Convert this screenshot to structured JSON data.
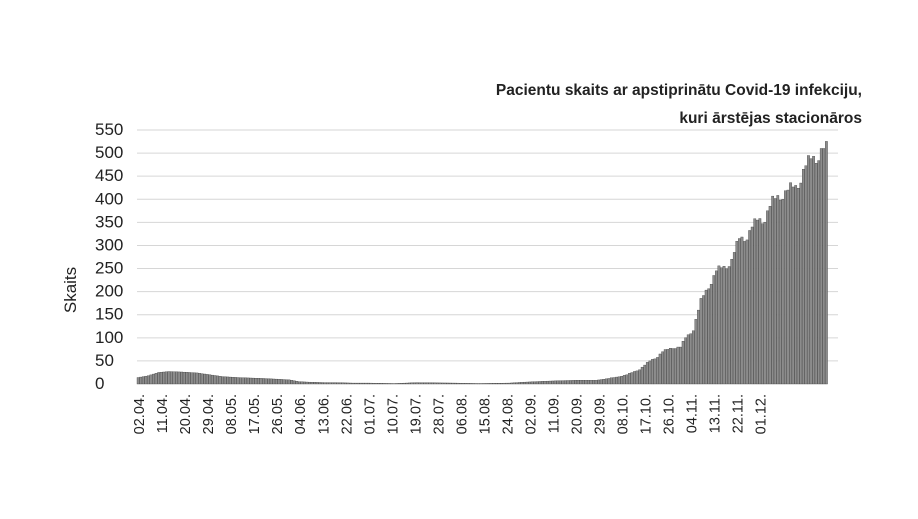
{
  "chart_data": {
    "type": "bar",
    "title": [
      "Pacientu skaits ar apstiprinātu Covid-19 infekciju,",
      "kuri ārstējas stacionāros"
    ],
    "ylabel": "Skaits",
    "xlabel": "",
    "ylim": [
      0,
      550
    ],
    "grid": true,
    "yticks": [
      0,
      50,
      100,
      150,
      200,
      250,
      300,
      350,
      400,
      450,
      500,
      550
    ],
    "xtick_labels": [
      "02.04.",
      "11.04.",
      "20.04.",
      "29.04.",
      "08.05.",
      "17.05.",
      "26.05.",
      "04.06.",
      "13.06.",
      "22.06.",
      "01.07.",
      "10.07.",
      "19.07.",
      "28.07.",
      "06.08.",
      "15.08.",
      "24.08.",
      "02.09.",
      "11.09.",
      "20.09.",
      "29.09.",
      "08.10.",
      "17.10.",
      "26.10.",
      "04.11.",
      "13.11.",
      "22.11.",
      "01.12."
    ],
    "keypoints": [
      {
        "day": 1,
        "value": 14
      },
      {
        "day": 5,
        "value": 18
      },
      {
        "day": 9,
        "value": 25
      },
      {
        "day": 13,
        "value": 27
      },
      {
        "day": 18,
        "value": 26
      },
      {
        "day": 24,
        "value": 24
      },
      {
        "day": 29,
        "value": 20
      },
      {
        "day": 34,
        "value": 16
      },
      {
        "day": 40,
        "value": 14
      },
      {
        "day": 50,
        "value": 12
      },
      {
        "day": 57,
        "value": 10
      },
      {
        "day": 60,
        "value": 9
      },
      {
        "day": 64,
        "value": 5
      },
      {
        "day": 68,
        "value": 4
      },
      {
        "day": 74,
        "value": 3
      },
      {
        "day": 78,
        "value": 3
      },
      {
        "day": 85,
        "value": 2
      },
      {
        "day": 91,
        "value": 2
      },
      {
        "day": 101,
        "value": 1
      },
      {
        "day": 110,
        "value": 3
      },
      {
        "day": 125,
        "value": 2
      },
      {
        "day": 134,
        "value": 1
      },
      {
        "day": 146,
        "value": 2
      },
      {
        "day": 152,
        "value": 4
      },
      {
        "day": 160,
        "value": 6
      },
      {
        "day": 165,
        "value": 7
      },
      {
        "day": 172,
        "value": 8
      },
      {
        "day": 180,
        "value": 8
      },
      {
        "day": 185,
        "value": 12
      },
      {
        "day": 188,
        "value": 15
      },
      {
        "day": 192,
        "value": 20
      },
      {
        "day": 197,
        "value": 32
      },
      {
        "day": 201,
        "value": 50
      },
      {
        "day": 204,
        "value": 60
      },
      {
        "day": 206,
        "value": 70
      },
      {
        "day": 210,
        "value": 80
      },
      {
        "day": 213,
        "value": 80
      },
      {
        "day": 215,
        "value": 100
      },
      {
        "day": 218,
        "value": 120
      },
      {
        "day": 221,
        "value": 180
      },
      {
        "day": 224,
        "value": 215
      },
      {
        "day": 227,
        "value": 245
      },
      {
        "day": 230,
        "value": 255
      },
      {
        "day": 233,
        "value": 270
      },
      {
        "day": 236,
        "value": 315
      },
      {
        "day": 239,
        "value": 325
      },
      {
        "day": 243,
        "value": 355
      },
      {
        "day": 246,
        "value": 365
      },
      {
        "day": 249,
        "value": 395
      },
      {
        "day": 252,
        "value": 415
      },
      {
        "day": 255,
        "value": 420
      },
      {
        "day": 258,
        "value": 430
      },
      {
        "day": 261,
        "value": 465
      },
      {
        "day": 264,
        "value": 488
      },
      {
        "day": 266,
        "value": 498
      },
      {
        "day": 268,
        "value": 510
      }
    ]
  }
}
